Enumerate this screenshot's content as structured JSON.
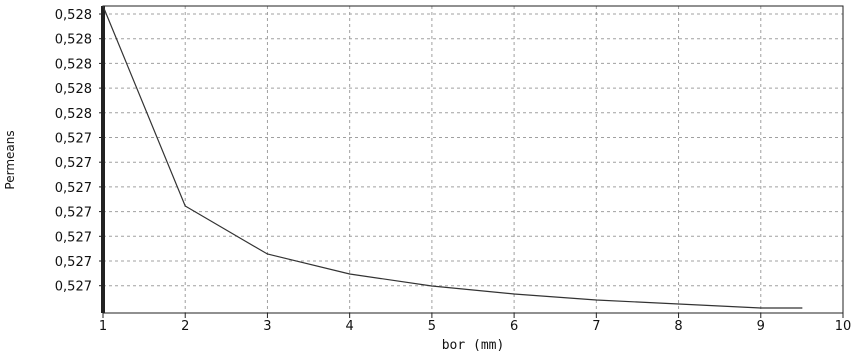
{
  "chart_data": {
    "type": "line",
    "title": "",
    "xlabel": "bor (mm)",
    "ylabel": "Permeans",
    "x_ticks": [
      "1",
      "2",
      "3",
      "4",
      "5",
      "6",
      "7",
      "8",
      "9",
      "10"
    ],
    "y_ticks": [
      "0,528",
      "0,528",
      "0,528",
      "0,528",
      "0,528",
      "0,527",
      "0,527",
      "0,527",
      "0,527",
      "0,527",
      "0,527",
      "0,527"
    ],
    "xlim": [
      1,
      10
    ],
    "grid": true,
    "legend": "none",
    "series": [
      {
        "x": [
          1,
          2,
          3,
          4,
          5,
          6,
          7,
          8,
          9,
          9.5
        ],
        "y": [
          0.52825,
          0.52725,
          0.52701,
          0.52691,
          0.52685,
          0.52681,
          0.52678,
          0.52676,
          0.52674,
          0.52674
        ]
      }
    ]
  },
  "colors": {
    "line": "#333333",
    "grid": "#a0a0a0",
    "axis": "#222222",
    "background": "#ffffff"
  }
}
